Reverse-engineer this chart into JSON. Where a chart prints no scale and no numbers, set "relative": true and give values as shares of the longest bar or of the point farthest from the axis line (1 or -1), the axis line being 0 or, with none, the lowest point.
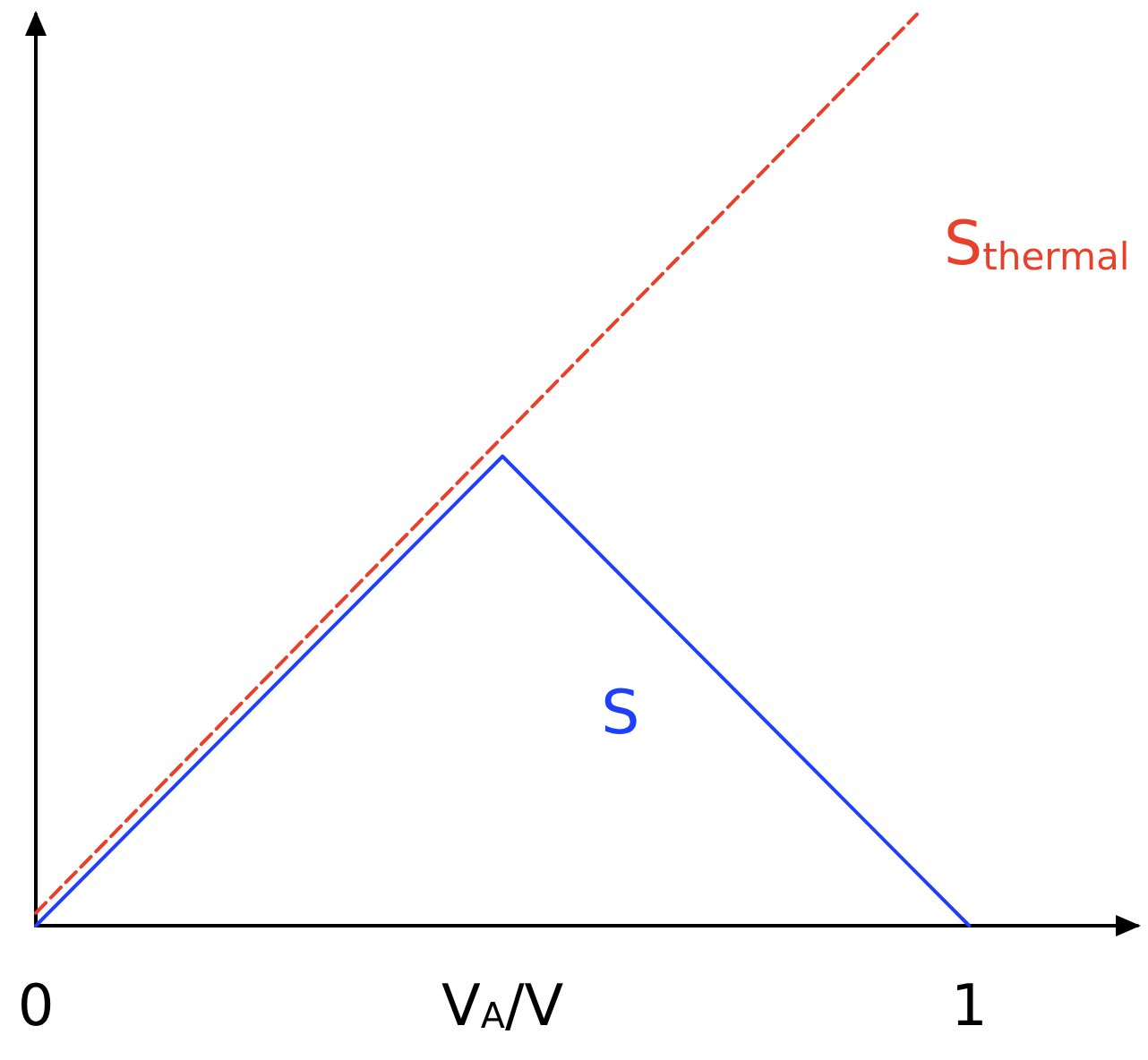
{
  "chart_data": {
    "type": "line",
    "relative": true,
    "xlim": [
      0,
      1.18
    ],
    "xticks": [
      0,
      {
        "value": 0.5,
        "label": "V$_{A}$/V"
      },
      1
    ],
    "grid": false,
    "marker": "none",
    "series": [
      {
        "name": "S$_{thermal}$",
        "color": "#e8402a",
        "line_style": "dashed",
        "x": [
          0,
          0.944
        ],
        "values": [
          0.014,
          1
        ]
      },
      {
        "name": "S",
        "color": "#1f3fff",
        "line_style": "solid",
        "x": [
          0,
          0.5,
          1
        ],
        "values": [
          0,
          0.515,
          0
        ]
      }
    ]
  }
}
